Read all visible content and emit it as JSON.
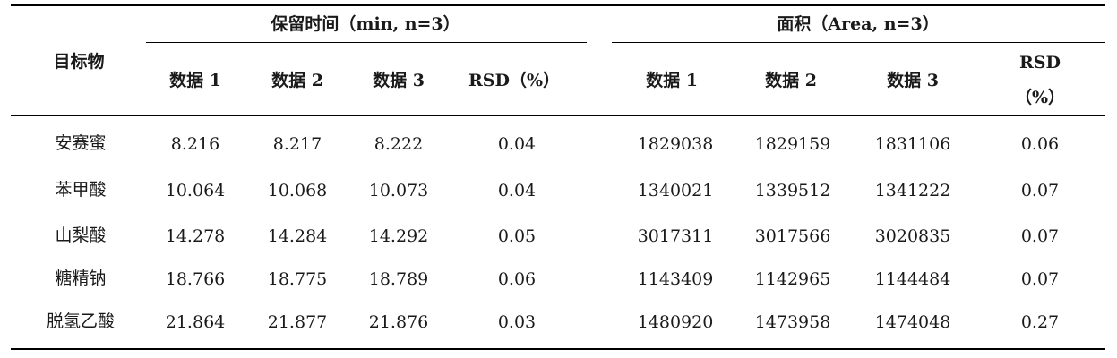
{
  "table": {
    "row_header": "目标物",
    "group_retention": "保留时间（min, n=3）",
    "group_area": "面积（Area, n=3）",
    "sub_headers_retention": [
      "数据 1",
      "数据 2",
      "数据 3",
      "RSD（%）"
    ],
    "sub_headers_area": [
      "数据 1",
      "数据 2",
      "数据 3"
    ],
    "area_rsd_line1": "RSD",
    "area_rsd_line2": "（%）",
    "rows": [
      {
        "name": "安赛蜜",
        "values": [
          "8.216",
          "8.217",
          "8.222",
          "0.04",
          "1829038",
          "1829159",
          "1831106",
          "0.06"
        ]
      },
      {
        "name": "苯甲酸",
        "values": [
          "10.064",
          "10.068",
          "10.073",
          "0.04",
          "1340021",
          "1339512",
          "1341222",
          "0.07"
        ]
      },
      {
        "name": "山梨酸",
        "values": [
          "14.278",
          "14.284",
          "14.292",
          "0.05",
          "3017311",
          "3017566",
          "3020835",
          "0.07"
        ]
      },
      {
        "name": "糖精钠",
        "values": [
          "18.766",
          "18.775",
          "18.789",
          "0.06",
          "1143409",
          "1142965",
          "1144484",
          "0.07"
        ]
      },
      {
        "name": "脱氢乙酸",
        "values": [
          "21.864",
          "21.877",
          "21.876",
          "0.03",
          "1480920",
          "1473958",
          "1474048",
          "0.27"
        ]
      }
    ]
  }
}
